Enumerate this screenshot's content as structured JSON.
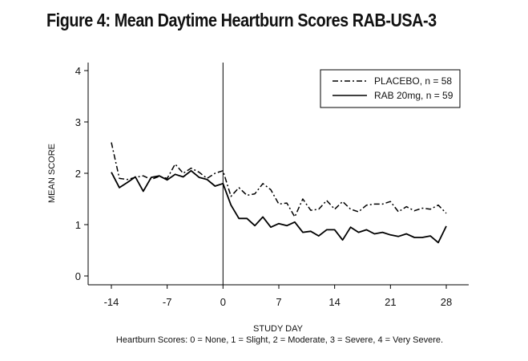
{
  "figure_title": "Figure 4: Mean Daytime Heartburn Scores RAB-USA-3",
  "chart_data": {
    "type": "line",
    "title": "",
    "xlabel": "STUDY DAY",
    "ylabel": "MEAN SCORE",
    "caption": "Heartburn Scores: 0 = None, 1 = Slight, 2 = Moderate, 3 = Severe, 4 = Very Severe.",
    "xlim": [
      -16,
      30
    ],
    "ylim": [
      0,
      4
    ],
    "xticks": [
      -14,
      -7,
      0,
      7,
      14,
      21,
      28
    ],
    "yticks": [
      0,
      1,
      2,
      3,
      4
    ],
    "vertical_reference_line_x": 0,
    "legend_position": "top-right",
    "grid": false,
    "series": [
      {
        "name": "PLACEBO, n = 58",
        "style": "dash-dot",
        "x": [
          -14,
          -13,
          -12,
          -11,
          -10,
          -9,
          -8,
          -7,
          -6,
          -5,
          -4,
          -3,
          -2,
          -1,
          0,
          1,
          2,
          3,
          4,
          5,
          6,
          7,
          8,
          9,
          10,
          11,
          12,
          13,
          14,
          15,
          16,
          17,
          18,
          19,
          20,
          21,
          22,
          23,
          24,
          25,
          26,
          27,
          28
        ],
        "values": [
          2.6,
          1.9,
          1.88,
          1.92,
          1.95,
          1.88,
          1.94,
          1.9,
          2.18,
          2.0,
          2.1,
          2.02,
          1.9,
          2.0,
          2.05,
          1.55,
          1.72,
          1.57,
          1.6,
          1.8,
          1.68,
          1.4,
          1.42,
          1.15,
          1.5,
          1.28,
          1.3,
          1.47,
          1.3,
          1.45,
          1.3,
          1.25,
          1.38,
          1.4,
          1.4,
          1.45,
          1.25,
          1.35,
          1.27,
          1.32,
          1.3,
          1.38,
          1.22
        ]
      },
      {
        "name": "RAB 20mg, n = 59",
        "style": "solid",
        "x": [
          -14,
          -13,
          -12,
          -11,
          -10,
          -9,
          -8,
          -7,
          -6,
          -5,
          -4,
          -3,
          -2,
          -1,
          0,
          1,
          2,
          3,
          4,
          5,
          6,
          7,
          8,
          9,
          10,
          11,
          12,
          13,
          14,
          15,
          16,
          17,
          18,
          19,
          20,
          21,
          22,
          23,
          24,
          25,
          26,
          27,
          28
        ],
        "values": [
          2.02,
          1.72,
          1.82,
          1.93,
          1.65,
          1.92,
          1.95,
          1.87,
          1.98,
          1.93,
          2.05,
          1.92,
          1.88,
          1.75,
          1.8,
          1.38,
          1.12,
          1.12,
          0.98,
          1.15,
          0.95,
          1.02,
          0.98,
          1.05,
          0.85,
          0.87,
          0.78,
          0.9,
          0.9,
          0.7,
          0.95,
          0.85,
          0.9,
          0.82,
          0.85,
          0.8,
          0.77,
          0.82,
          0.75,
          0.75,
          0.78,
          0.65,
          0.97
        ]
      }
    ]
  }
}
